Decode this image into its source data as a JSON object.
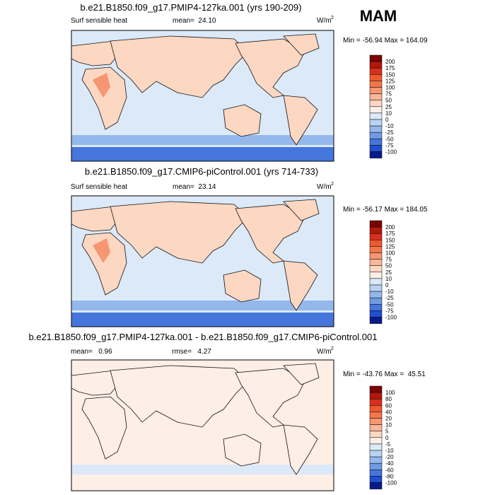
{
  "header": {
    "season": "MAM"
  },
  "panels": [
    {
      "title": "b.e21.B1850.f09_g17.PMIP4-127ka.001 (yrs 190-209)",
      "variable": "Surf sensible heat",
      "stat": "mean=  24.10",
      "units": "W/m",
      "units_exponent": "2",
      "range": "Min = -56.94 Max = 164.09",
      "colorbar": {
        "labels": [
          200,
          175,
          150,
          125,
          100,
          75,
          50,
          25,
          10,
          0,
          -10,
          -25,
          -50,
          -75,
          -100
        ],
        "colors": [
          "#7a0403",
          "#b2180c",
          "#d7301f",
          "#ef5a2d",
          "#f4764a",
          "#f79672",
          "#f9b79a",
          "#fcd7c2",
          "#fdeee6",
          "#dbe9f9",
          "#bad3f3",
          "#94b8ec",
          "#6f9be3",
          "#4676dc",
          "#1f50d0",
          "#0a1a8a"
        ]
      }
    },
    {
      "title": "b.e21.B1850.f09_g17.CMIP6-piControl.001 (yrs 714-733)",
      "variable": "Surf sensible heat",
      "stat": "mean=  23.14",
      "units": "W/m",
      "units_exponent": "2",
      "range": "Min = -56.17 Max = 184.05",
      "colorbar": {
        "labels": [
          200,
          175,
          150,
          125,
          100,
          75,
          50,
          25,
          10,
          0,
          -10,
          -25,
          -50,
          -75,
          -100
        ],
        "colors": [
          "#7a0403",
          "#b2180c",
          "#d7301f",
          "#ef5a2d",
          "#f4764a",
          "#f79672",
          "#f9b79a",
          "#fcd7c2",
          "#fdeee6",
          "#dbe9f9",
          "#bad3f3",
          "#94b8ec",
          "#6f9be3",
          "#4676dc",
          "#1f50d0",
          "#0a1a8a"
        ]
      }
    },
    {
      "title": "b.e21.B1850.f09_g17.PMIP4-127ka.001 - b.e21.B1850.f09_g17.CMIP6-piControl.001",
      "stat": "mean=   0.96",
      "stat2": "rmse=   4.27",
      "units": "W/m",
      "units_exponent": "2",
      "range": "Min = -43.76 Max =  45.51",
      "colorbar": {
        "labels": [
          100,
          80,
          60,
          40,
          20,
          10,
          5,
          0,
          -5,
          -10,
          -20,
          -40,
          -60,
          -80,
          -100
        ],
        "colors": [
          "#7a0403",
          "#b2180c",
          "#d7301f",
          "#ef5a2d",
          "#f4764a",
          "#f79672",
          "#f9b79a",
          "#fcd7c2",
          "#fdeee6",
          "#dbe9f9",
          "#bad3f3",
          "#94b8ec",
          "#6f9be3",
          "#4676dc",
          "#1f50d0",
          "#0a1a8a"
        ]
      }
    }
  ]
}
